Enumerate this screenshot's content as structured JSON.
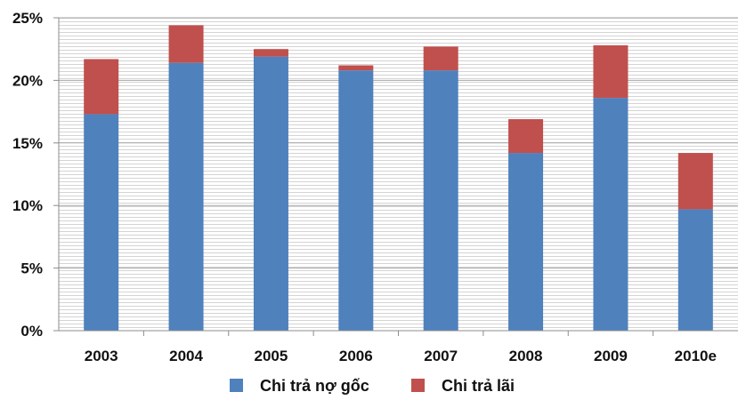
{
  "chart_data": {
    "type": "bar",
    "stacked": true,
    "categories": [
      "2003",
      "2004",
      "2005",
      "2006",
      "2007",
      "2008",
      "2009",
      "2010e"
    ],
    "series": [
      {
        "name": "Chi trả nợ gốc",
        "color": "#4F81BD",
        "values": [
          17.3,
          21.4,
          21.9,
          20.8,
          20.8,
          14.2,
          18.6,
          9.7
        ]
      },
      {
        "name": "Chi trả lãi",
        "color": "#C0504D",
        "values": [
          4.4,
          3.0,
          0.6,
          0.4,
          1.9,
          2.7,
          4.2,
          4.5
        ]
      }
    ],
    "ylim": [
      0,
      25
    ],
    "yticks": [
      "0%",
      "5%",
      "10%",
      "15%",
      "20%",
      "25%"
    ],
    "ytick_values": [
      0,
      5,
      10,
      15,
      20,
      25
    ],
    "grid": true,
    "legend_position": "bottom"
  }
}
